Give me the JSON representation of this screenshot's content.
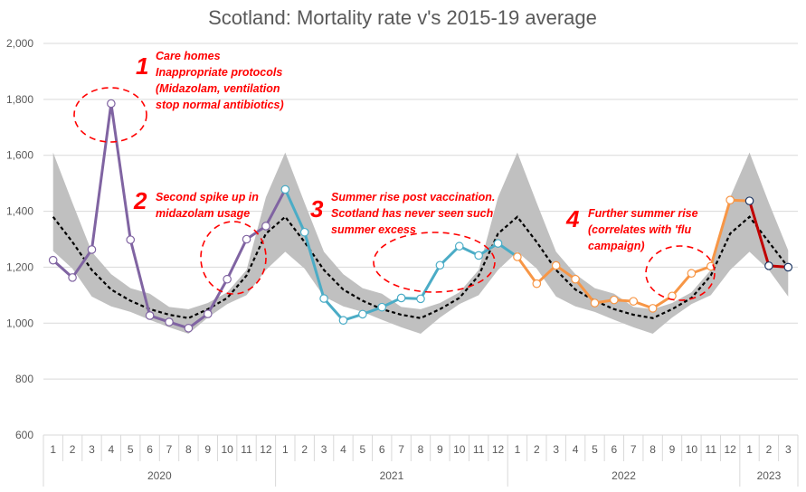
{
  "chart_data": {
    "type": "line",
    "title": "Scotland: Mortality rate v's 2015-19 average",
    "xlabel": "",
    "ylabel": "",
    "ylim": [
      600,
      2000
    ],
    "yticks": [
      "600",
      "800",
      "1,000",
      "1,200",
      "1,400",
      "1,600",
      "1,800",
      "2,000"
    ],
    "ytick_values": [
      600,
      800,
      1000,
      1200,
      1400,
      1600,
      1800,
      2000
    ],
    "grid": true,
    "months": [
      "1",
      "2",
      "3",
      "4",
      "5",
      "6",
      "7",
      "8",
      "9",
      "10",
      "11",
      "12",
      "1",
      "2",
      "3",
      "4",
      "5",
      "6",
      "7",
      "8",
      "9",
      "10",
      "11",
      "12",
      "1",
      "2",
      "3",
      "4",
      "5",
      "6",
      "7",
      "8",
      "9",
      "10",
      "11",
      "12",
      "1",
      "2",
      "3"
    ],
    "years": [
      {
        "label": "2020",
        "count": 12
      },
      {
        "label": "2021",
        "count": 12
      },
      {
        "label": "2022",
        "count": 12
      },
      {
        "label": "2023",
        "count": 3
      }
    ],
    "band": {
      "name": "2015-19 range",
      "color": "#c0c0c0",
      "upper": [
        1610,
        1430,
        1255,
        1175,
        1125,
        1105,
        1058,
        1050,
        1072,
        1110,
        1190,
        1450,
        1610,
        1430,
        1255,
        1175,
        1125,
        1105,
        1058,
        1050,
        1072,
        1110,
        1190,
        1450,
        1610,
        1430,
        1255,
        1175,
        1125,
        1105,
        1058,
        1050,
        1072,
        1110,
        1190,
        1450,
        1610,
        1430,
        1260
      ],
      "lower": [
        1258,
        1195,
        1095,
        1060,
        1040,
        1012,
        985,
        962,
        1020,
        1068,
        1100,
        1190,
        1255,
        1195,
        1095,
        1060,
        1040,
        1012,
        985,
        962,
        1020,
        1068,
        1100,
        1190,
        1255,
        1195,
        1095,
        1060,
        1040,
        1012,
        985,
        962,
        1020,
        1068,
        1100,
        1190,
        1255,
        1190,
        1095
      ]
    },
    "average": {
      "name": "2015-19 average",
      "color": "#000000",
      "values": [
        1380,
        1290,
        1190,
        1120,
        1080,
        1050,
        1030,
        1018,
        1050,
        1090,
        1170,
        1320,
        1380,
        1290,
        1190,
        1120,
        1080,
        1050,
        1030,
        1018,
        1050,
        1090,
        1170,
        1320,
        1380,
        1290,
        1190,
        1120,
        1080,
        1050,
        1030,
        1018,
        1050,
        1090,
        1170,
        1320,
        1380,
        1290,
        1200
      ]
    },
    "series": [
      {
        "name": "2020",
        "color": "#8064a2",
        "start": 0,
        "values": [
          1225,
          1163,
          1263,
          1785,
          1298,
          1027,
          1004,
          982,
          1033,
          1157,
          1300,
          1347,
          1478
        ]
      },
      {
        "name": "2021",
        "color": "#4bacc6",
        "start": 12,
        "values": [
          1478,
          1325,
          1088,
          1010,
          1032,
          1057,
          1090,
          1087,
          1207,
          1275,
          1242,
          1285,
          1237
        ]
      },
      {
        "name": "2022",
        "color": "#f79646",
        "start": 24,
        "values": [
          1237,
          1141,
          1206,
          1157,
          1072,
          1083,
          1078,
          1053,
          1097,
          1178,
          1203,
          1440,
          1437
        ]
      },
      {
        "name": "2023",
        "color": "#c00000",
        "start": 36,
        "values": [
          1437,
          1205,
          1200
        ]
      }
    ],
    "annotations": [
      {
        "number": "1",
        "lines": [
          "Care homes",
          "Inappropriate protocols",
          "(Midazolam, ventilation",
          "stop normal antibiotics)"
        ]
      },
      {
        "number": "2",
        "lines": [
          "Second spike up in",
          "midazolam usage"
        ]
      },
      {
        "number": "3",
        "lines": [
          "Summer rise post vaccination.",
          "Scotland has never seen such",
          "summer excess"
        ]
      },
      {
        "number": "4",
        "lines": [
          "Further summer rise",
          "(correlates with 'flu",
          "campaign)"
        ]
      }
    ]
  }
}
